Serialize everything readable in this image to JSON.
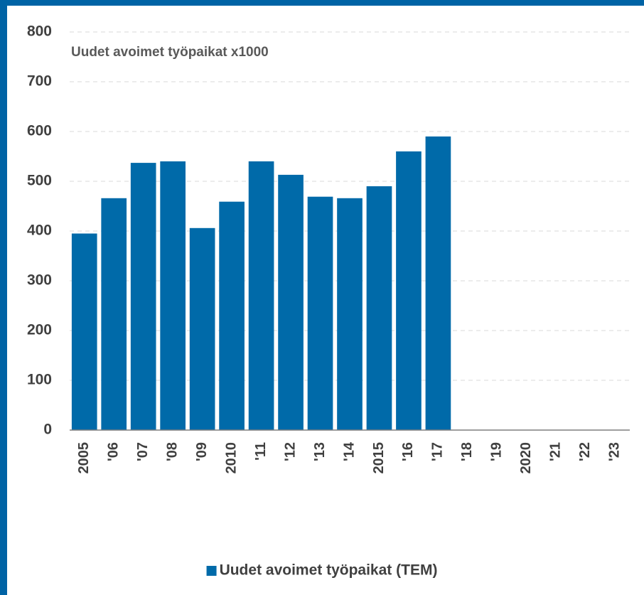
{
  "chart_data": {
    "type": "bar",
    "subtitle": "Uudet avoimet työpaikat x1000",
    "categories": [
      "2005",
      "'06",
      "'07",
      "'08",
      "'09",
      "2010",
      "'11",
      "'12",
      "'13",
      "'14",
      "2015",
      "'16",
      "'17",
      "'18",
      "'19",
      "2020",
      "'21",
      "'22",
      "'23"
    ],
    "series": [
      {
        "name": "Uudet avoimet työpaikat (TEM)",
        "color": "#006aa9",
        "values": [
          395,
          466,
          537,
          540,
          406,
          459,
          540,
          513,
          469,
          466,
          490,
          560,
          590,
          null,
          null,
          null,
          null,
          null,
          null
        ]
      }
    ],
    "ylim": [
      0,
      800
    ],
    "yticks": [
      0,
      100,
      200,
      300,
      400,
      500,
      600,
      700,
      800
    ],
    "grid": true,
    "legend": "bottom"
  }
}
